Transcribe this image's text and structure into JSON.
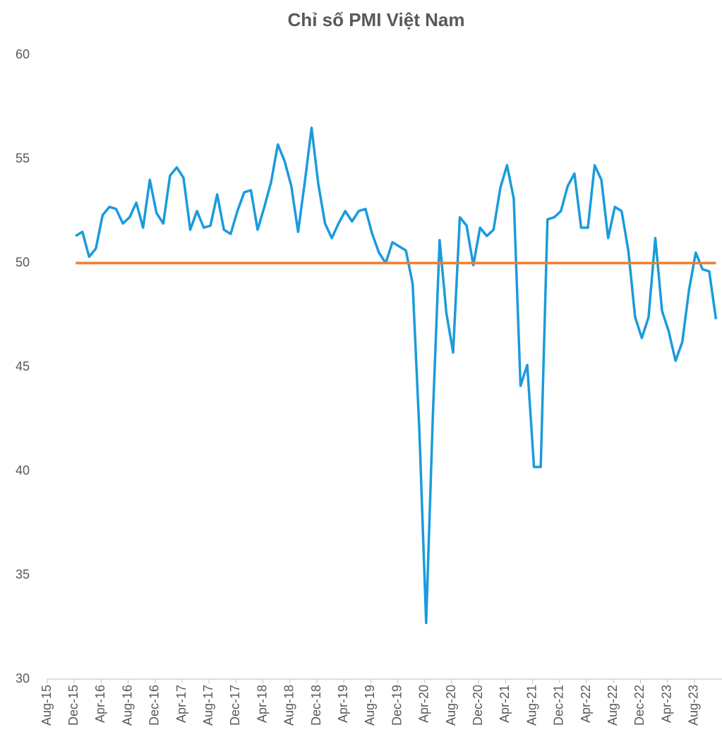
{
  "chart_data": {
    "type": "line",
    "title": "Chỉ số PMI Việt Nam",
    "categories": [
      "Aug-15",
      null,
      null,
      null,
      "Dec-15",
      null,
      null,
      null,
      "Apr-16",
      null,
      null,
      null,
      "Aug-16",
      null,
      null,
      null,
      "Dec-16",
      null,
      null,
      null,
      "Apr-17",
      null,
      null,
      null,
      "Aug-17",
      null,
      null,
      null,
      "Dec-17",
      null,
      null,
      null,
      "Apr-18",
      null,
      null,
      null,
      "Aug-18",
      null,
      null,
      null,
      "Dec-18",
      null,
      null,
      null,
      "Apr-19",
      null,
      null,
      null,
      "Aug-19",
      null,
      null,
      null,
      "Dec-19",
      null,
      null,
      null,
      "Apr-20",
      null,
      null,
      null,
      "Aug-20",
      null,
      null,
      null,
      "Dec-20",
      null,
      null,
      null,
      "Apr-21",
      null,
      null,
      null,
      "Aug-21",
      null,
      null,
      null,
      "Dec-21",
      null,
      null,
      null,
      "Apr-22",
      null,
      null,
      null,
      "Aug-22",
      null,
      null,
      null,
      "Dec-22",
      null,
      null,
      null,
      "Apr-23",
      null,
      null,
      null,
      "Aug-23",
      null,
      null,
      null
    ],
    "series": [
      {
        "color": "#1a9bdc",
        "values": [
          null,
          null,
          null,
          null,
          51.3,
          51.5,
          50.3,
          50.7,
          52.3,
          52.7,
          52.6,
          51.9,
          52.2,
          52.9,
          51.7,
          54.0,
          52.4,
          51.9,
          54.2,
          54.6,
          54.1,
          51.6,
          52.5,
          51.7,
          51.8,
          53.3,
          51.6,
          51.4,
          52.5,
          53.4,
          53.5,
          51.6,
          52.7,
          53.9,
          55.7,
          54.9,
          53.7,
          51.5,
          53.9,
          56.5,
          53.8,
          51.9,
          51.2,
          51.9,
          52.5,
          52.0,
          52.5,
          52.6,
          51.4,
          50.5,
          50.0,
          51.0,
          50.8,
          50.6,
          49.0,
          41.9,
          32.7,
          42.7,
          51.1,
          47.6,
          45.7,
          52.2,
          51.8,
          49.9,
          51.7,
          51.3,
          51.6,
          53.6,
          54.7,
          53.1,
          44.1,
          45.1,
          40.2,
          40.2,
          52.1,
          52.2,
          52.5,
          53.7,
          54.3,
          51.7,
          51.7,
          54.7,
          54.0,
          51.2,
          52.7,
          52.5,
          50.6,
          47.4,
          46.4,
          47.4,
          51.2,
          47.7,
          46.7,
          45.3,
          46.2,
          48.7,
          50.5,
          49.7,
          49.6,
          47.3
        ]
      },
      {
        "color": "#ed7d31",
        "values": [
          null,
          null,
          null,
          null,
          50,
          50,
          50,
          50,
          50,
          50,
          50,
          50,
          50,
          50,
          50,
          50,
          50,
          50,
          50,
          50,
          50,
          50,
          50,
          50,
          50,
          50,
          50,
          50,
          50,
          50,
          50,
          50,
          50,
          50,
          50,
          50,
          50,
          50,
          50,
          50,
          50,
          50,
          50,
          50,
          50,
          50,
          50,
          50,
          50,
          50,
          50,
          50,
          50,
          50,
          50,
          50,
          50,
          50,
          50,
          50,
          50,
          50,
          50,
          50,
          50,
          50,
          50,
          50,
          50,
          50,
          50,
          50,
          50,
          50,
          50,
          50,
          50,
          50,
          50,
          50,
          50,
          50,
          50,
          50,
          50,
          50,
          50,
          50,
          50,
          50,
          50,
          50,
          50,
          50,
          50,
          50,
          50,
          50,
          50,
          50
        ]
      }
    ],
    "ylim": [
      30,
      60
    ],
    "yticks": [
      30,
      35,
      40,
      45,
      50,
      55,
      60
    ],
    "grid": false
  }
}
